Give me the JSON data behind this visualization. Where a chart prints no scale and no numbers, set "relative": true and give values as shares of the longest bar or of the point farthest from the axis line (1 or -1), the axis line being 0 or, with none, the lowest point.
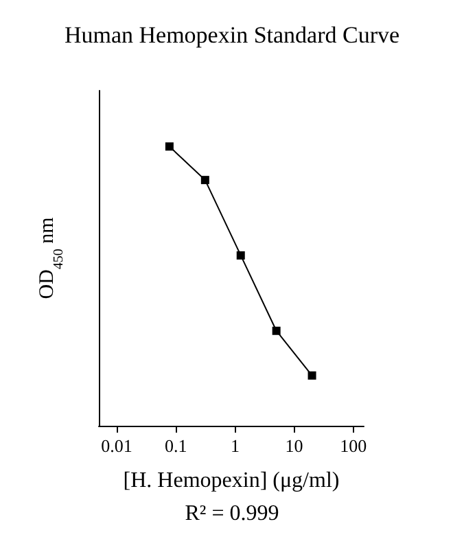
{
  "chart_data": {
    "type": "line",
    "title": "Human Hemopexin Standard Curve",
    "xlabel": "[H. Hemopexin] (μg/ml)",
    "ylabel": "OD$_{450}$ nm",
    "annotations": [
      "R² = 0.999"
    ],
    "x": [
      0.078,
      0.3125,
      1.25,
      5,
      20
    ],
    "series": [
      {
        "color": "#000000",
        "values": [
          1,
          0.88,
          0.61,
          0.34,
          0.18
        ]
      }
    ],
    "relative": true,
    "log": "x",
    "xlim": [
      0.005,
      150
    ],
    "xticks": [
      0.01,
      0.1,
      1,
      10,
      100
    ],
    "marker": "square",
    "line_style": "solid"
  }
}
